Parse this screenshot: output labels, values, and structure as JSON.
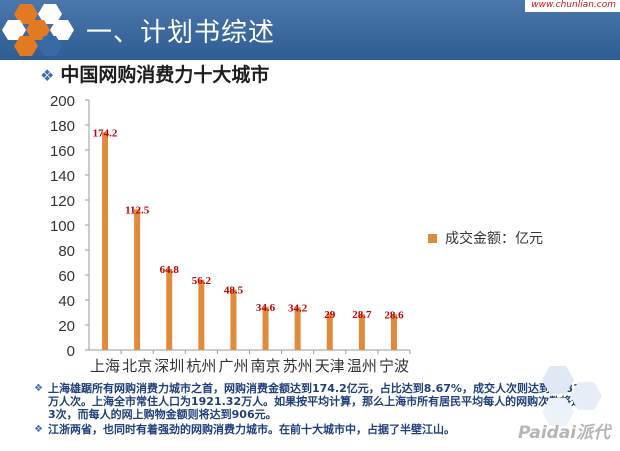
{
  "header": {
    "title": "一、计划书综述",
    "logo_text": "www.chunlian.com"
  },
  "subtitle": "中国网购消费力十大城市",
  "legend_label": "成交金额：亿元",
  "colors": {
    "bar": "#e08a3c",
    "label": "#c00000",
    "banner": "#3a6aa3"
  },
  "chart_data": {
    "type": "bar",
    "categories": [
      "上海",
      "北京",
      "深圳",
      "杭州",
      "广州",
      "南京",
      "苏州",
      "天津",
      "温州",
      "宁波"
    ],
    "values": [
      174.2,
      112.5,
      64.8,
      56.2,
      48.5,
      34.6,
      34.2,
      29,
      28.7,
      28.6
    ],
    "labels": [
      "174.2",
      "112.5",
      "64.8",
      "56.2",
      "48.5",
      "34.6",
      "34.2",
      "29",
      "28.7",
      "28.6"
    ],
    "series": [
      {
        "name": "成交金额：亿元",
        "values": [
          174.2,
          112.5,
          64.8,
          56.2,
          48.5,
          34.6,
          34.2,
          29,
          28.7,
          28.6
        ]
      }
    ],
    "yticks": [
      0,
      20,
      40,
      60,
      80,
      100,
      120,
      140,
      160,
      180,
      200
    ],
    "ylim": [
      0,
      200
    ],
    "grid": false,
    "legend_position": "right"
  },
  "notes": [
    "上海雄踞所有网购消费力城市之首，网购消费金额达到174.2亿元，占比达到8.67%，成交人次则达到5881.7万人次。上海全市常住人口为1921.32万人。如果按平均计算，那么上海市所有居民平均每人的网购次数将达到3次，而每人的网上购物金额则将达到906元。",
    "江浙两省，也同时有着强劲的网购消费力城市。在前十大城市中，占据了半壁江山。"
  ],
  "watermark": "Paidai派代"
}
